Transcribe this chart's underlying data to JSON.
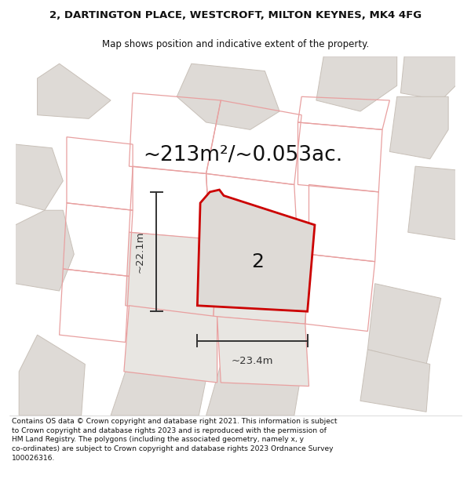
{
  "title_line1": "2, DARTINGTON PLACE, WESTCROFT, MILTON KEYNES, MK4 4FG",
  "title_line2": "Map shows position and indicative extent of the property.",
  "area_text": "~213m²/~0.053ac.",
  "dim_width": "~23.4m",
  "dim_height": "~22.1m",
  "plot_label": "2",
  "footer_lines": [
    "Contains OS data © Crown copyright and database right 2021. This information is subject to Crown copyright and database rights 2023 and is reproduced with the permission of",
    "HM Land Registry. The polygons (including the associated geometry, namely x, y co-ordinates) are subject to Crown copyright and database rights 2023 Ordnance Survey 100026316."
  ],
  "map_bg": "#ffffff",
  "parcel_fill_light": "#e8e6e2",
  "parcel_fill_gray": "#dedad6",
  "parcel_edge_pink": "#e8a0a0",
  "parcel_edge_gray": "#c8c0b8",
  "plot_fill": "#dedad6",
  "plot_edge": "#cc0000",
  "dim_color": "#333333",
  "title_color": "#111111",
  "footer_color": "#111111",
  "title_fontsize": 9.5,
  "subtitle_fontsize": 8.5,
  "area_fontsize": 19,
  "plot_label_fontsize": 18,
  "dim_fontsize": 9.5,
  "footer_fontsize": 6.6
}
